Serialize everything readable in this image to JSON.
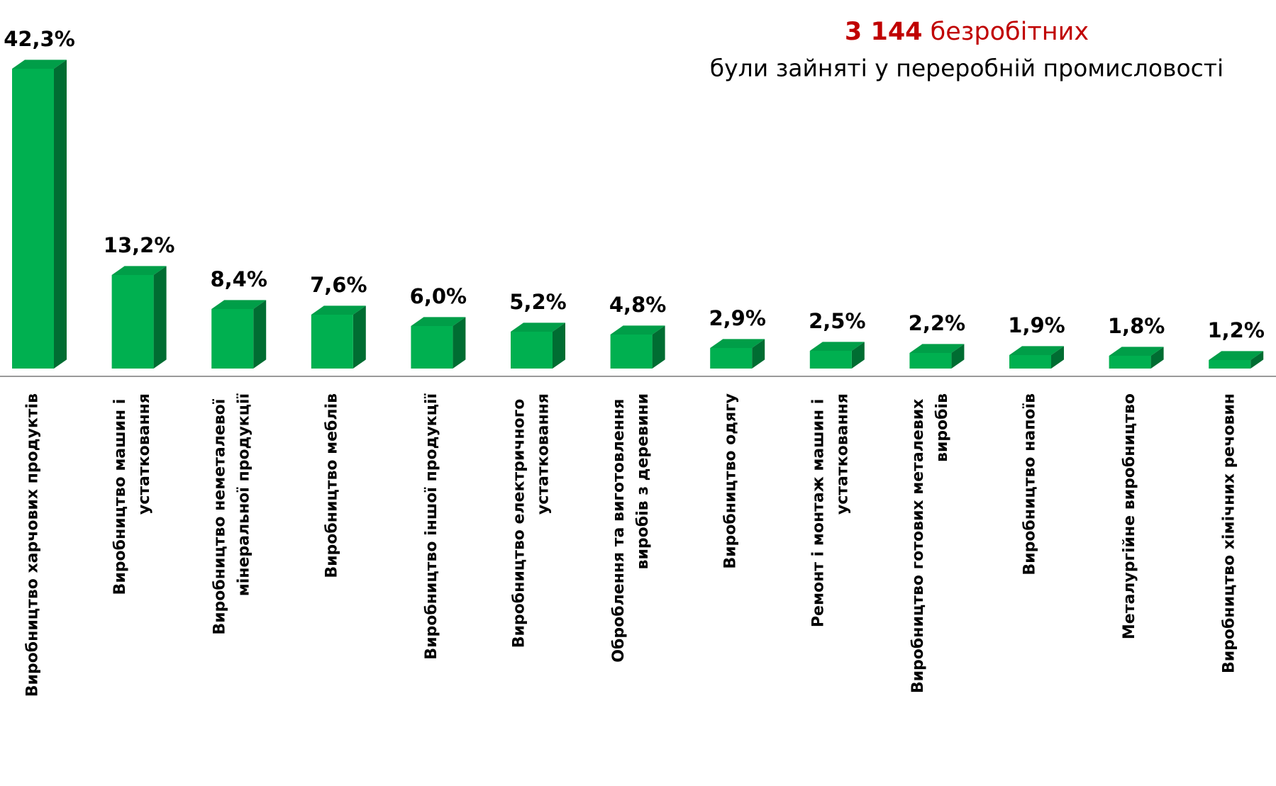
{
  "chart_data": {
    "type": "bar",
    "title_number": "3 144",
    "title_unit": "безробітних",
    "subtitle": "були зайняті у переробній промисловості",
    "categories": [
      "Виробництво харчових продуктів",
      "Виробництво машин і устатковання",
      "Виробництво неметалевої мінеральної продукції",
      "Виробництво меблів",
      "Виробництво іншої продукції",
      "Виробництво електричного устатковання",
      "Оброблення та виготовлення виробів з деревини",
      "Виробництво одягу",
      "Ремонт і монтаж машин і устатковання",
      "Виробництво готових металевих виробів",
      "Виробництво напоїв",
      "Металургійне виробництво",
      "Виробництво хімічних речовин"
    ],
    "values": [
      42.3,
      13.2,
      8.4,
      7.6,
      6.0,
      5.2,
      4.8,
      2.9,
      2.5,
      2.2,
      1.9,
      1.8,
      1.2
    ],
    "value_labels": [
      "42,3%",
      "13,2%",
      "8,4%",
      "7,6%",
      "6,0%",
      "5,2%",
      "4,8%",
      "2,9%",
      "2,5%",
      "2,2%",
      "1,9%",
      "1,8%",
      "1,2%"
    ],
    "color": "#00b050",
    "title_color": "#c00000"
  }
}
